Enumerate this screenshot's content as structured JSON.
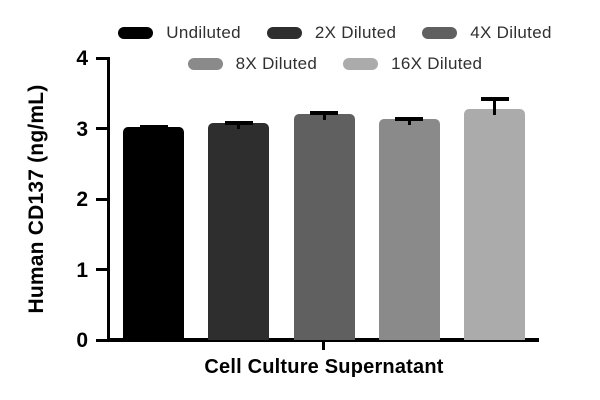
{
  "figure": {
    "y_axis_title": "Human CD137 (ng/mL)",
    "x_axis_title": "Cell Culture Supernatant"
  },
  "legend": {
    "items": [
      {
        "label": "Undiluted",
        "color": "#000000",
        "row": 0
      },
      {
        "label": "2X Diluted",
        "color": "#2e2e2e",
        "row": 0
      },
      {
        "label": "4X Diluted",
        "color": "#606060",
        "row": 0
      },
      {
        "label": "8X Diluted",
        "color": "#8a8a8a",
        "row": 1
      },
      {
        "label": "16X Diluted",
        "color": "#ababab",
        "row": 1
      }
    ]
  },
  "chart_data": {
    "type": "bar",
    "title": "",
    "xlabel": "Cell Culture Supernatant",
    "ylabel": "Human CD137 (ng/mL)",
    "ylim": [
      0,
      4
    ],
    "yticks": [
      0,
      1,
      2,
      3,
      4
    ],
    "grid": false,
    "legend_position": "top",
    "categories": [
      "Undiluted",
      "2X Diluted",
      "4X Diluted",
      "8X Diluted",
      "16X Diluted"
    ],
    "values": [
      3.02,
      3.08,
      3.2,
      3.13,
      3.27
    ],
    "errors_plus": [
      0.03,
      0.03,
      0.05,
      0.03,
      0.18
    ],
    "bar_colors": [
      "#000000",
      "#2e2e2e",
      "#606060",
      "#8a8a8a",
      "#ababab"
    ],
    "error_bar_color": "#000000"
  }
}
